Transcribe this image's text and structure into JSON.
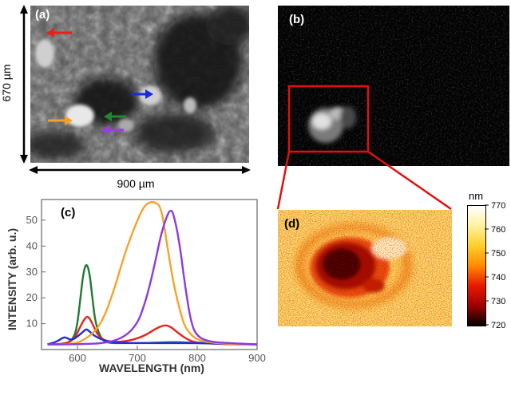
{
  "panels": {
    "a": {
      "label": "(a)",
      "height_label": "670 µm",
      "width_label": "900 µm"
    },
    "b": {
      "label": "(b)"
    },
    "c": {
      "label": "(c)"
    },
    "d": {
      "label": "(d)"
    }
  },
  "arrows": [
    {
      "name": "red-arrow",
      "color": "#e8201c"
    },
    {
      "name": "orange-arrow",
      "color": "#f5a028"
    },
    {
      "name": "green-arrow",
      "color": "#1e8a30"
    },
    {
      "name": "blue-arrow",
      "color": "#1a2ad8"
    },
    {
      "name": "purple-arrow",
      "color": "#9a3ee0"
    }
  ],
  "chart_data": {
    "type": "line",
    "title": "",
    "xlabel": "WAVELENGTH (nm)",
    "ylabel": "INTENSITY (arb. u.)",
    "xlim": [
      540,
      900
    ],
    "ylim": [
      0,
      58
    ],
    "xticks": [
      600,
      700,
      800,
      900
    ],
    "yticks": [
      10,
      20,
      30,
      40,
      50
    ],
    "grid": false,
    "series": [
      {
        "color": "#1e7a2e",
        "x": [
          550,
          570,
          585,
          595,
          600,
          605,
          610,
          615,
          620,
          625,
          630,
          640,
          650,
          680,
          720,
          760,
          800,
          850,
          900
        ],
        "y": [
          2,
          2,
          2.5,
          5,
          10,
          20,
          30,
          33.5,
          30,
          20,
          10,
          4,
          2.5,
          2.5,
          2.5,
          3,
          2.5,
          2.2,
          2
        ]
      },
      {
        "color": "#e2261f",
        "x": [
          550,
          580,
          595,
          605,
          612,
          618,
          625,
          635,
          650,
          680,
          710,
          730,
          745,
          755,
          770,
          790,
          810,
          850,
          900
        ],
        "y": [
          2,
          2.2,
          4,
          9,
          12,
          13,
          10,
          5,
          3,
          3,
          5,
          8,
          9.5,
          9,
          6,
          3,
          2.5,
          2,
          2
        ]
      },
      {
        "color": "#1f2fd6",
        "x": [
          550,
          565,
          575,
          580,
          590,
          600,
          610,
          615,
          620,
          630,
          645,
          660,
          700,
          760,
          800,
          850,
          900
        ],
        "y": [
          2,
          3,
          4.5,
          4.8,
          3.5,
          5,
          7,
          8,
          7,
          5,
          3.5,
          2.6,
          2.5,
          2.5,
          2.5,
          2.2,
          2
        ]
      },
      {
        "color": "#f5a329",
        "x": [
          550,
          580,
          600,
          620,
          640,
          660,
          680,
          700,
          710,
          720,
          730,
          740,
          750,
          760,
          770,
          780,
          800,
          830,
          860,
          900
        ],
        "y": [
          2,
          2,
          2.5,
          5,
          10,
          22,
          38,
          50,
          55,
          57,
          57,
          55,
          40,
          26,
          16,
          8,
          3.5,
          2.5,
          2.2,
          2
        ]
      },
      {
        "color": "#8b3be0",
        "x": [
          550,
          600,
          650,
          680,
          700,
          710,
          720,
          730,
          740,
          750,
          755,
          760,
          770,
          780,
          790,
          800,
          820,
          850,
          900
        ],
        "y": [
          2,
          2,
          2.5,
          5,
          10,
          16,
          24,
          34,
          45,
          52,
          54,
          53,
          42,
          24,
          10,
          5,
          3,
          2.5,
          2
        ]
      }
    ]
  },
  "colorbar": {
    "unit": "nm",
    "ticks": [
      770,
      760,
      750,
      740,
      730,
      720
    ],
    "range": [
      720,
      770
    ],
    "colors": [
      "#ffffff",
      "#fff2a0",
      "#ffcf2a",
      "#ff8a00",
      "#e81a00",
      "#a00000",
      "#000000"
    ]
  }
}
